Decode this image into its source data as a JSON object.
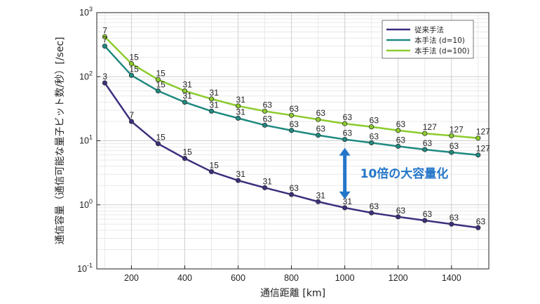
{
  "chart_data": {
    "type": "line",
    "xlabel": "通信距離 [km]",
    "ylabel": "通信容量（通信可能な量子ビット数/秒）[/sec]",
    "x_ticks": [
      "200",
      "400",
      "600",
      "800",
      "1000",
      "1200",
      "1400"
    ],
    "y_ticks": [
      {
        "base": "10",
        "exp": "-1"
      },
      {
        "base": "10",
        "exp": "0"
      },
      {
        "base": "10",
        "exp": "1"
      },
      {
        "base": "10",
        "exp": "2"
      },
      {
        "base": "10",
        "exp": "3"
      }
    ],
    "xlim": [
      70,
      1540
    ],
    "ylim": [
      0.1,
      1000
    ],
    "yscale": "log",
    "grid": true,
    "legend_position": "top-right",
    "x": [
      100,
      200,
      300,
      400,
      500,
      600,
      700,
      800,
      900,
      1000,
      1100,
      1200,
      1300,
      1400,
      1500
    ],
    "series": [
      {
        "name": "従来手法",
        "color": "#3b2f7e",
        "values": [
          80,
          20,
          9,
          5.3,
          3.3,
          2.4,
          1.85,
          1.45,
          1.12,
          0.9,
          0.75,
          0.65,
          0.57,
          0.5,
          0.44
        ],
        "point_labels": [
          "3",
          "7",
          "15",
          "15",
          "15",
          "31",
          "31",
          "63",
          "31",
          "31",
          "63",
          "63",
          "63",
          "63",
          "63"
        ]
      },
      {
        "name": "本手法 (d=10)",
        "color": "#1f8a80",
        "values": [
          300,
          105,
          60,
          40,
          29,
          22.5,
          17.5,
          14.5,
          12.2,
          10.5,
          9.3,
          8.2,
          7.3,
          6.6,
          6.0
        ],
        "point_labels": [
          "7",
          "15",
          "15",
          "31",
          "31",
          "31",
          "63",
          "63",
          "63",
          "63",
          "63",
          "63",
          "63",
          "63",
          "127"
        ]
      },
      {
        "name": "本手法 (d=100)",
        "color": "#8ccc2e",
        "values": [
          420,
          160,
          90,
          60,
          45,
          35,
          29,
          25,
          21.5,
          18.5,
          16.5,
          14.5,
          13,
          12,
          11
        ],
        "point_labels": [
          "7",
          "15",
          "15",
          "31",
          "31",
          "31",
          "63",
          "63",
          "63",
          "63",
          "63",
          "63",
          "127",
          "127",
          "127"
        ]
      }
    ],
    "annotations": [
      {
        "text": "10倍の大容量化",
        "color": "#2476c9",
        "arrow_x": 1000,
        "arrow_from": 1.0,
        "arrow_to": 10.5
      }
    ]
  }
}
